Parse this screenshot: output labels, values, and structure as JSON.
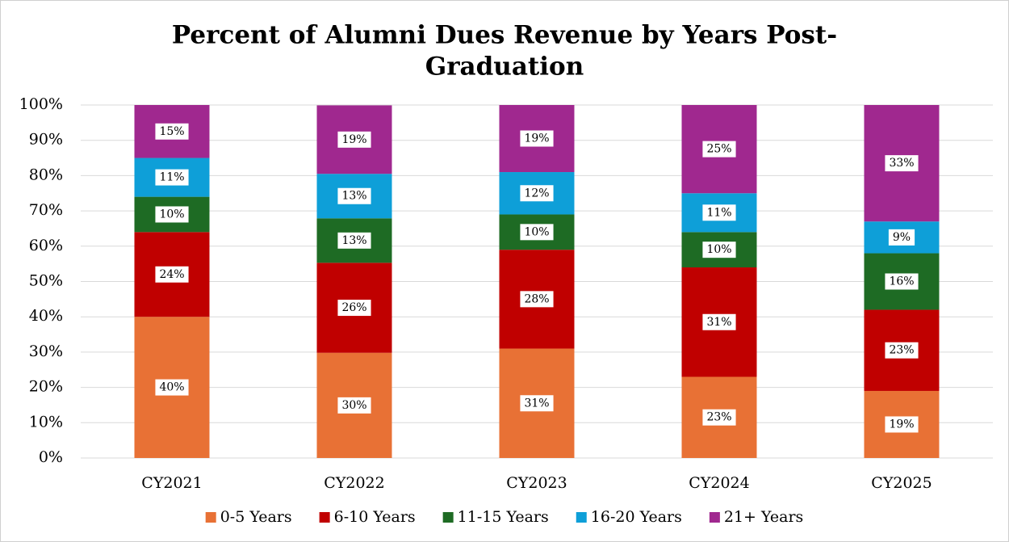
{
  "chart_data": {
    "type": "stacked_bar",
    "title": [
      "Percent of Alumni Dues Revenue by Years Post-",
      "Graduation"
    ],
    "categories": [
      "CY2021",
      "CY2022",
      "CY2023",
      "CY2024",
      "CY2025"
    ],
    "series": [
      {
        "name": "0-5 Years",
        "color": "#e87135",
        "values": [
          40,
          29.8,
          31,
          23,
          19
        ],
        "value_labels": [
          "40%",
          "30%",
          "31%",
          "23%",
          "19%"
        ]
      },
      {
        "name": "6-10 Years",
        "color": "#c00000",
        "values": [
          24,
          25.5,
          28,
          31,
          23
        ],
        "value_labels": [
          "24%",
          "26%",
          "28%",
          "31%",
          "23%"
        ]
      },
      {
        "name": "11-15 Years",
        "color": "#1e6b24",
        "values": [
          10,
          12.6,
          10,
          10,
          16
        ],
        "value_labels": [
          "10%",
          "13%",
          "10%",
          "10%",
          "16%"
        ]
      },
      {
        "name": "16-20 Years",
        "color": "#0e9fd8",
        "values": [
          11,
          12.6,
          12,
          11,
          9
        ],
        "value_labels": [
          "11%",
          "13%",
          "12%",
          "11%",
          "9%"
        ]
      },
      {
        "name": "21+ Years",
        "color": "#a0288f",
        "values": [
          15,
          19.4,
          19,
          25,
          33
        ],
        "value_labels": [
          "15%",
          "19%",
          "19%",
          "25%",
          "33%"
        ]
      }
    ],
    "ylim": [
      0,
      100
    ],
    "yticks": [
      {
        "value": 0,
        "label": "0%"
      },
      {
        "value": 10,
        "label": "10%"
      },
      {
        "value": 20,
        "label": "20%"
      },
      {
        "value": 30,
        "label": "30%"
      },
      {
        "value": 40,
        "label": "40%"
      },
      {
        "value": 50,
        "label": "50%"
      },
      {
        "value": 60,
        "label": "60%"
      },
      {
        "value": 70,
        "label": "70%"
      },
      {
        "value": 80,
        "label": "80%"
      },
      {
        "value": 90,
        "label": "90%"
      },
      {
        "value": 100,
        "label": "100%"
      }
    ],
    "grid": true,
    "legend": "bottom"
  }
}
